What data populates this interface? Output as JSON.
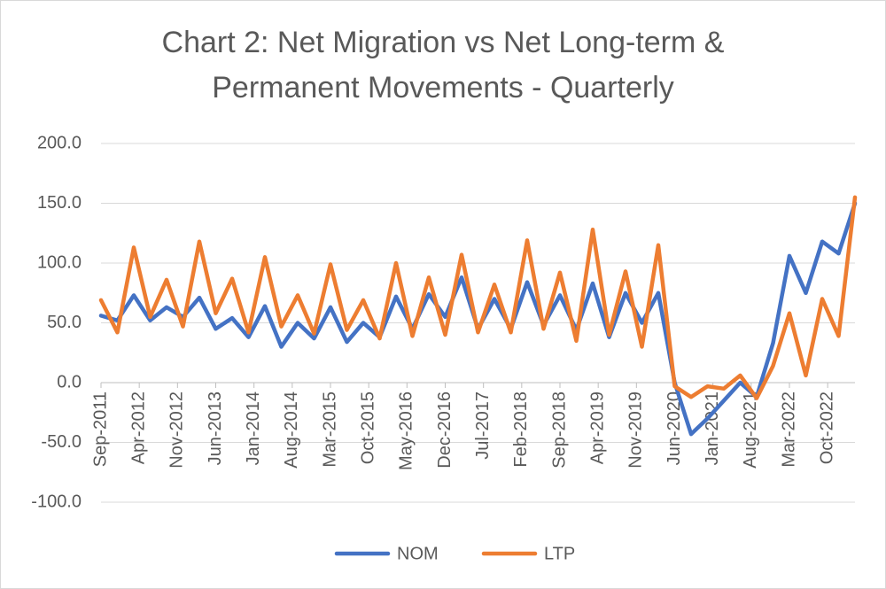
{
  "chart_data": {
    "type": "line",
    "title": [
      "Chart 2: Net Migration vs Net Long-term &",
      "Permanent Movements - Quarterly"
    ],
    "x": [
      "2011-09",
      "2011-12",
      "2012-03",
      "2012-06",
      "2012-09",
      "2012-12",
      "2013-03",
      "2013-06",
      "2013-09",
      "2013-12",
      "2014-03",
      "2014-06",
      "2014-09",
      "2014-12",
      "2015-03",
      "2015-06",
      "2015-09",
      "2015-12",
      "2016-03",
      "2016-06",
      "2016-09",
      "2016-12",
      "2017-03",
      "2017-06",
      "2017-09",
      "2017-12",
      "2018-03",
      "2018-06",
      "2018-09",
      "2018-12",
      "2019-03",
      "2019-06",
      "2019-09",
      "2019-12",
      "2020-03",
      "2020-06",
      "2020-09",
      "2020-12",
      "2021-03",
      "2021-06",
      "2021-09",
      "2021-12",
      "2022-03",
      "2022-06",
      "2022-09",
      "2022-12",
      "2023-03"
    ],
    "series": [
      {
        "name": "NOM",
        "color": "#4472c4",
        "values": [
          56,
          52,
          73,
          52,
          63,
          55,
          71,
          45,
          54,
          38,
          64,
          30,
          50,
          37,
          63,
          34,
          50,
          38,
          72,
          45,
          74,
          55,
          88,
          45,
          70,
          45,
          84,
          48,
          73,
          44,
          83,
          38,
          75,
          50,
          75,
          0,
          -43,
          -30,
          -15,
          0,
          -12,
          33,
          106,
          75,
          118,
          108,
          150
        ]
      },
      {
        "name": "LTP",
        "color": "#ed7d31",
        "values": [
          69,
          42,
          113,
          55,
          86,
          47,
          118,
          58,
          87,
          42,
          105,
          47,
          73,
          41,
          99,
          44,
          69,
          37,
          100,
          39,
          88,
          40,
          107,
          42,
          82,
          42,
          119,
          45,
          92,
          35,
          128,
          40,
          93,
          30,
          115,
          -3,
          -12,
          -3,
          -5,
          6,
          -13,
          14,
          58,
          6,
          70,
          39,
          155
        ]
      }
    ],
    "xlim": [
      "2011-09",
      "2023-03"
    ],
    "xticks": [
      {
        "value": "2011-09",
        "label": "Sep-2011"
      },
      {
        "value": "2012-04",
        "label": "Apr-2012"
      },
      {
        "value": "2012-11",
        "label": "Nov-2012"
      },
      {
        "value": "2013-06",
        "label": "Jun-2013"
      },
      {
        "value": "2014-01",
        "label": "Jan-2014"
      },
      {
        "value": "2014-08",
        "label": "Aug-2014"
      },
      {
        "value": "2015-03",
        "label": "Mar-2015"
      },
      {
        "value": "2015-10",
        "label": "Oct-2015"
      },
      {
        "value": "2016-05",
        "label": "May-2016"
      },
      {
        "value": "2016-12",
        "label": "Dec-2016"
      },
      {
        "value": "2017-07",
        "label": "Jul-2017"
      },
      {
        "value": "2018-02",
        "label": "Feb-2018"
      },
      {
        "value": "2018-09",
        "label": "Sep-2018"
      },
      {
        "value": "2019-04",
        "label": "Apr-2019"
      },
      {
        "value": "2019-11",
        "label": "Nov-2019"
      },
      {
        "value": "2020-06",
        "label": "Jun-2020"
      },
      {
        "value": "2021-01",
        "label": "Jan-2021"
      },
      {
        "value": "2021-08",
        "label": "Aug-2021"
      },
      {
        "value": "2022-03",
        "label": "Mar-2022"
      },
      {
        "value": "2022-10",
        "label": "Oct-2022"
      }
    ],
    "ylim": [
      -100,
      200
    ],
    "yticks": [
      {
        "value": -100,
        "label": "-100.0"
      },
      {
        "value": -50,
        "label": "-50.0"
      },
      {
        "value": 0,
        "label": "0.0"
      },
      {
        "value": 50,
        "label": "50.0"
      },
      {
        "value": 100,
        "label": "100.0"
      },
      {
        "value": 150,
        "label": "150.0"
      },
      {
        "value": 200,
        "label": "200.0"
      }
    ],
    "grid": true,
    "legend": "bottom"
  }
}
